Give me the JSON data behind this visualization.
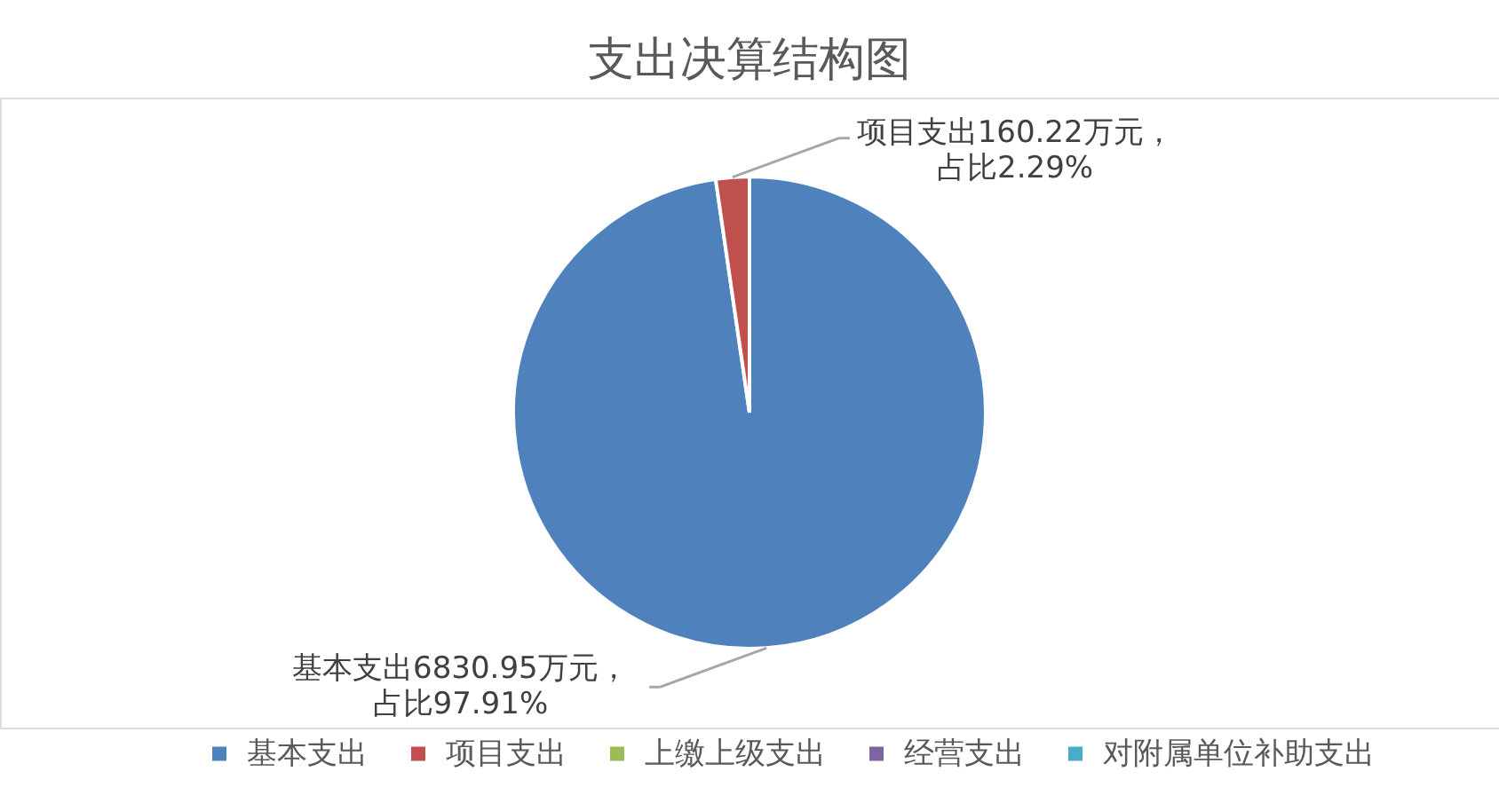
{
  "chart_data": {
    "type": "pie",
    "title": "支出决算结构图",
    "categories": [
      "基本支出",
      "项目支出",
      "上缴上级支出",
      "经营支出",
      "对附属单位补助支出"
    ],
    "values": [
      6830.95,
      160.22,
      0,
      0,
      0
    ],
    "colors": [
      "#4f81bd",
      "#c0504d",
      "#9bbb59",
      "#8064a2",
      "#4bacc6"
    ],
    "value_labels": [
      "基本支出6830.95万元，占比97.91%",
      "项目支出160.22万元，占比2.29%",
      null,
      null,
      null
    ],
    "legend": "bottom"
  }
}
